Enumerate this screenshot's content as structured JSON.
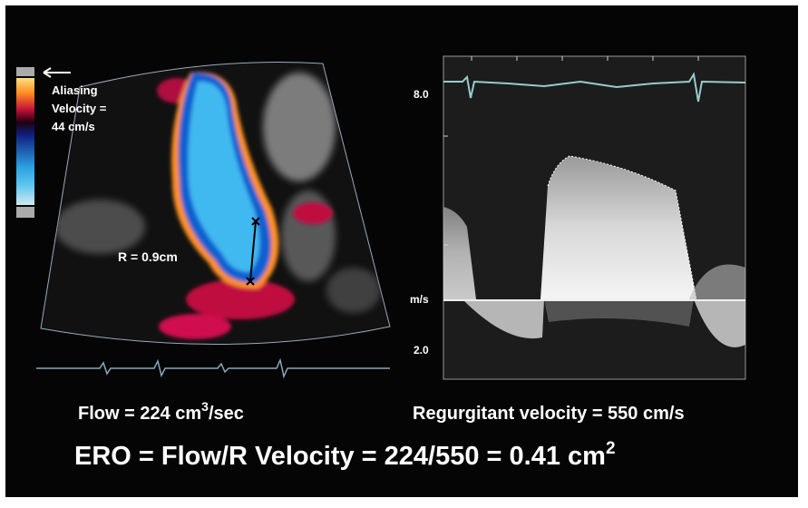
{
  "left_panel": {
    "aliasing_label": [
      "Aliasing",
      "Velocity =",
      "44 cm/s"
    ],
    "radius_label": "R = 0.9cm"
  },
  "right_panel": {
    "scale_top": "8.0",
    "unit": "m/s",
    "scale_bottom": "2.0"
  },
  "captions": {
    "flow": {
      "text": "Flow = 224 cm",
      "superscript": "3",
      "suffix": "/sec"
    },
    "velocity": "Regurgitant velocity = 550 cm/s",
    "ero": {
      "text": "ERO = Flow/R Velocity = 224/550 = 0.41 cm",
      "superscript": "2"
    }
  }
}
